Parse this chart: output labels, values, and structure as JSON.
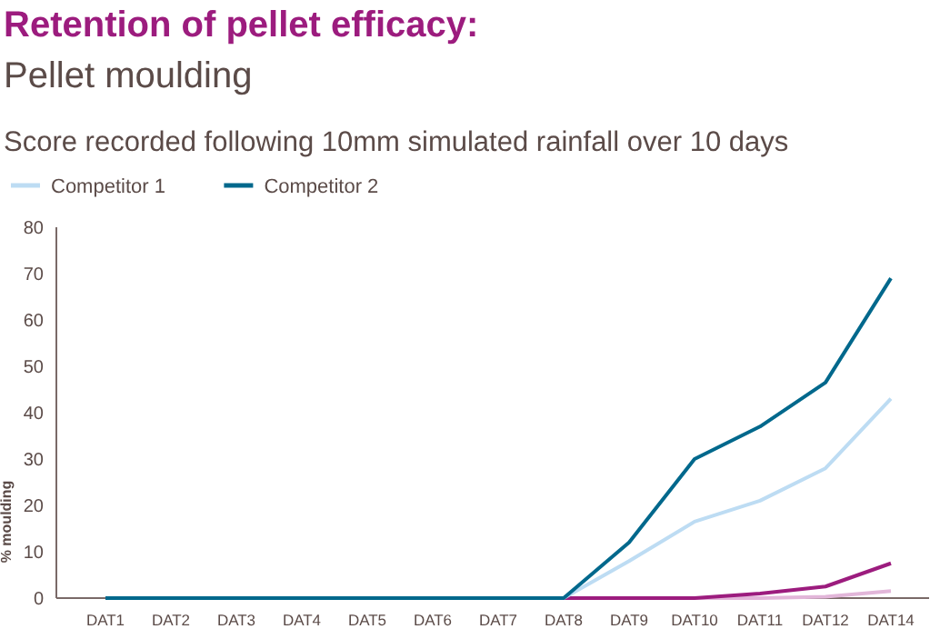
{
  "chart_data": {
    "type": "line",
    "title": "Retention of pellet efficacy:",
    "subtitle": "Pellet moulding",
    "annotations": [
      "Score recorded following 10mm simulated rainfall over 10 days"
    ],
    "ylabel": "% moulding",
    "categories": [
      "DAT1",
      "DAT2",
      "DAT3",
      "DAT4",
      "DAT5",
      "DAT6",
      "DAT7",
      "DAT8",
      "DAT9",
      "DAT10",
      "DAT11",
      "DAT12",
      "DAT14"
    ],
    "ylim": [
      0,
      80
    ],
    "yticks": [
      0,
      10,
      20,
      30,
      40,
      50,
      60,
      70,
      80
    ],
    "grid": false,
    "legend": "top",
    "marker": "none",
    "line_style": "solid",
    "series": [
      {
        "color": "#e2b6d9",
        "values": [
          null,
          null,
          null,
          null,
          null,
          null,
          null,
          0,
          0,
          0,
          0,
          0.3,
          1.5
        ]
      },
      {
        "color": "#9c1c7e",
        "values": [
          null,
          null,
          null,
          null,
          null,
          null,
          null,
          0,
          0,
          0,
          1,
          2.5,
          7.5
        ]
      },
      {
        "name": "Competitor 1",
        "color": "#bddcf3",
        "values": [
          null,
          null,
          null,
          null,
          null,
          null,
          null,
          0,
          8,
          16.5,
          21,
          28,
          43
        ]
      },
      {
        "name": "Competitor 2",
        "color": "#00688c",
        "values": [
          0,
          0,
          0,
          0,
          0,
          0,
          0,
          0,
          12,
          30,
          37,
          46.5,
          69
        ]
      }
    ]
  }
}
